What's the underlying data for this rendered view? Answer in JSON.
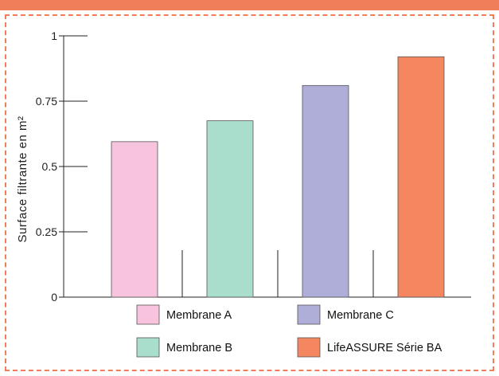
{
  "chart_data": {
    "type": "bar",
    "categories": [
      "Membrane A",
      "Membrane B",
      "Membrane C",
      "LifeASSURE Série BA"
    ],
    "values": [
      0.595,
      0.675,
      0.81,
      0.92
    ],
    "colors": [
      "#f7c3dd",
      "#a9ddcc",
      "#aeaed8",
      "#f48660"
    ],
    "ylabel": "Surface filtrante en m²",
    "xlabel": "",
    "ylim": [
      0,
      1
    ],
    "yticks": [
      0,
      0.25,
      0.5,
      0.75,
      1
    ],
    "ytick_labels": [
      "0",
      "0.25",
      "0.5",
      "0.75",
      "1"
    ],
    "grid": false,
    "legend_position": "bottom"
  },
  "accent_color": "#f07e5a"
}
